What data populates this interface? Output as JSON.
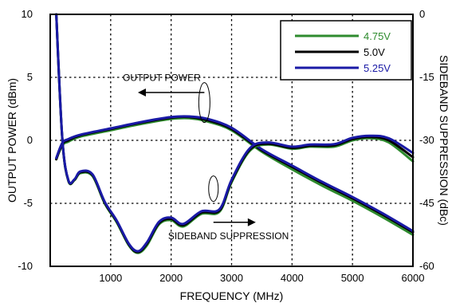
{
  "chart_data": {
    "type": "line",
    "xlabel": "FREQUENCY (MHz)",
    "ylabel_left": "OUTPUT POWER (dBm)",
    "ylabel_right": "SIDEBAND SUPPRESSION (dBc)",
    "xlim": [
      0,
      6000
    ],
    "ylim_left": [
      -10,
      10
    ],
    "ylim_right": [
      -60,
      0
    ],
    "x_ticks": [
      1000,
      2000,
      3000,
      4000,
      5000,
      6000
    ],
    "y_ticks_left": [
      -10,
      -5,
      0,
      5,
      10
    ],
    "y_ticks_right": [
      -60,
      -45,
      -30,
      -15,
      0
    ],
    "grid": true,
    "legend_position": "top-right",
    "annotations": {
      "output_power": "OUTPUT POWER",
      "sideband_suppression": "SIDEBAND SUPPRESSION"
    },
    "series": [
      {
        "name": "4.75V",
        "color": "#2e8b2e",
        "axis": "left",
        "metric": "output_power",
        "x": [
          100,
          200,
          300,
          500,
          1000,
          1500,
          2000,
          2300,
          2600,
          3000,
          3500,
          4000,
          4500,
          5000,
          5500,
          6000
        ],
        "y": [
          -1.5,
          -0.4,
          -0.1,
          0.3,
          0.8,
          1.3,
          1.7,
          1.75,
          1.5,
          0.8,
          -0.9,
          -2.3,
          -3.6,
          -4.8,
          -6.1,
          -7.5
        ]
      },
      {
        "name": "5.0V",
        "color": "#000000",
        "axis": "left",
        "metric": "output_power",
        "x": [
          100,
          200,
          300,
          500,
          1000,
          1500,
          2000,
          2300,
          2600,
          3000,
          3500,
          4000,
          4500,
          5000,
          5500,
          6000
        ],
        "y": [
          -1.5,
          -0.3,
          0.0,
          0.4,
          0.9,
          1.4,
          1.8,
          1.85,
          1.6,
          0.9,
          -0.8,
          -2.1,
          -3.4,
          -4.6,
          -5.9,
          -7.3
        ]
      },
      {
        "name": "5.25V",
        "color": "#1a1aa6",
        "axis": "left",
        "metric": "output_power",
        "x": [
          100,
          200,
          300,
          500,
          1000,
          1500,
          2000,
          2300,
          2600,
          3000,
          3500,
          4000,
          4500,
          5000,
          5500,
          6000
        ],
        "y": [
          -1.4,
          -0.2,
          0.1,
          0.45,
          0.95,
          1.45,
          1.85,
          1.9,
          1.7,
          1.0,
          -0.7,
          -2.0,
          -3.3,
          -4.5,
          -5.8,
          -7.2
        ]
      },
      {
        "name": "4.75V",
        "color": "#2e8b2e",
        "axis": "right",
        "metric": "sideband_suppression",
        "x": [
          100,
          200,
          300,
          400,
          500,
          700,
          900,
          1100,
          1300,
          1450,
          1600,
          1800,
          2000,
          2200,
          2500,
          2800,
          3000,
          3300,
          3600,
          4000,
          4300,
          4700,
          5000,
          5300,
          5600,
          6000
        ],
        "y": [
          0.0,
          -29.8,
          -39.7,
          -39.5,
          -37.8,
          -38.5,
          -45.0,
          -49.5,
          -55.0,
          -56.8,
          -55.0,
          -50.0,
          -49.0,
          -50.5,
          -47.5,
          -47.0,
          -40.0,
          -32.5,
          -31.0,
          -32.0,
          -31.5,
          -31.5,
          -30.0,
          -29.5,
          -30.5,
          -35.0
        ]
      },
      {
        "name": "5.0V",
        "color": "#000000",
        "axis": "right",
        "metric": "sideband_suppression",
        "x": [
          100,
          200,
          300,
          400,
          500,
          700,
          900,
          1100,
          1300,
          1450,
          1600,
          1800,
          2000,
          2200,
          2500,
          2800,
          3000,
          3300,
          3600,
          4000,
          4300,
          4700,
          5000,
          5300,
          5600,
          6000
        ],
        "y": [
          0.0,
          -29.7,
          -39.6,
          -39.4,
          -37.6,
          -38.3,
          -44.8,
          -49.3,
          -54.8,
          -56.6,
          -54.6,
          -49.7,
          -48.7,
          -50.2,
          -47.2,
          -46.7,
          -39.7,
          -32.2,
          -30.8,
          -31.8,
          -31.3,
          -31.2,
          -29.7,
          -29.2,
          -30.0,
          -34.0
        ]
      },
      {
        "name": "5.25V",
        "color": "#1a1aa6",
        "axis": "right",
        "metric": "sideband_suppression",
        "x": [
          100,
          200,
          300,
          400,
          500,
          700,
          900,
          1100,
          1300,
          1450,
          1600,
          1800,
          2000,
          2200,
          2500,
          2800,
          3000,
          3300,
          3600,
          4000,
          4300,
          4700,
          5000,
          5300,
          5600,
          6000
        ],
        "y": [
          0.0,
          -29.6,
          -39.5,
          -39.3,
          -37.4,
          -38.1,
          -44.6,
          -49.1,
          -54.6,
          -56.4,
          -54.3,
          -49.4,
          -48.4,
          -49.9,
          -46.9,
          -46.4,
          -39.4,
          -31.9,
          -30.5,
          -31.5,
          -31.0,
          -30.9,
          -29.4,
          -28.9,
          -29.5,
          -33.0
        ]
      }
    ],
    "legend": [
      {
        "label": "4.75V",
        "color": "#2e8b2e"
      },
      {
        "label": "5.0V",
        "color": "#000000"
      },
      {
        "label": "5.25V",
        "color": "#1a1aa6"
      }
    ]
  }
}
